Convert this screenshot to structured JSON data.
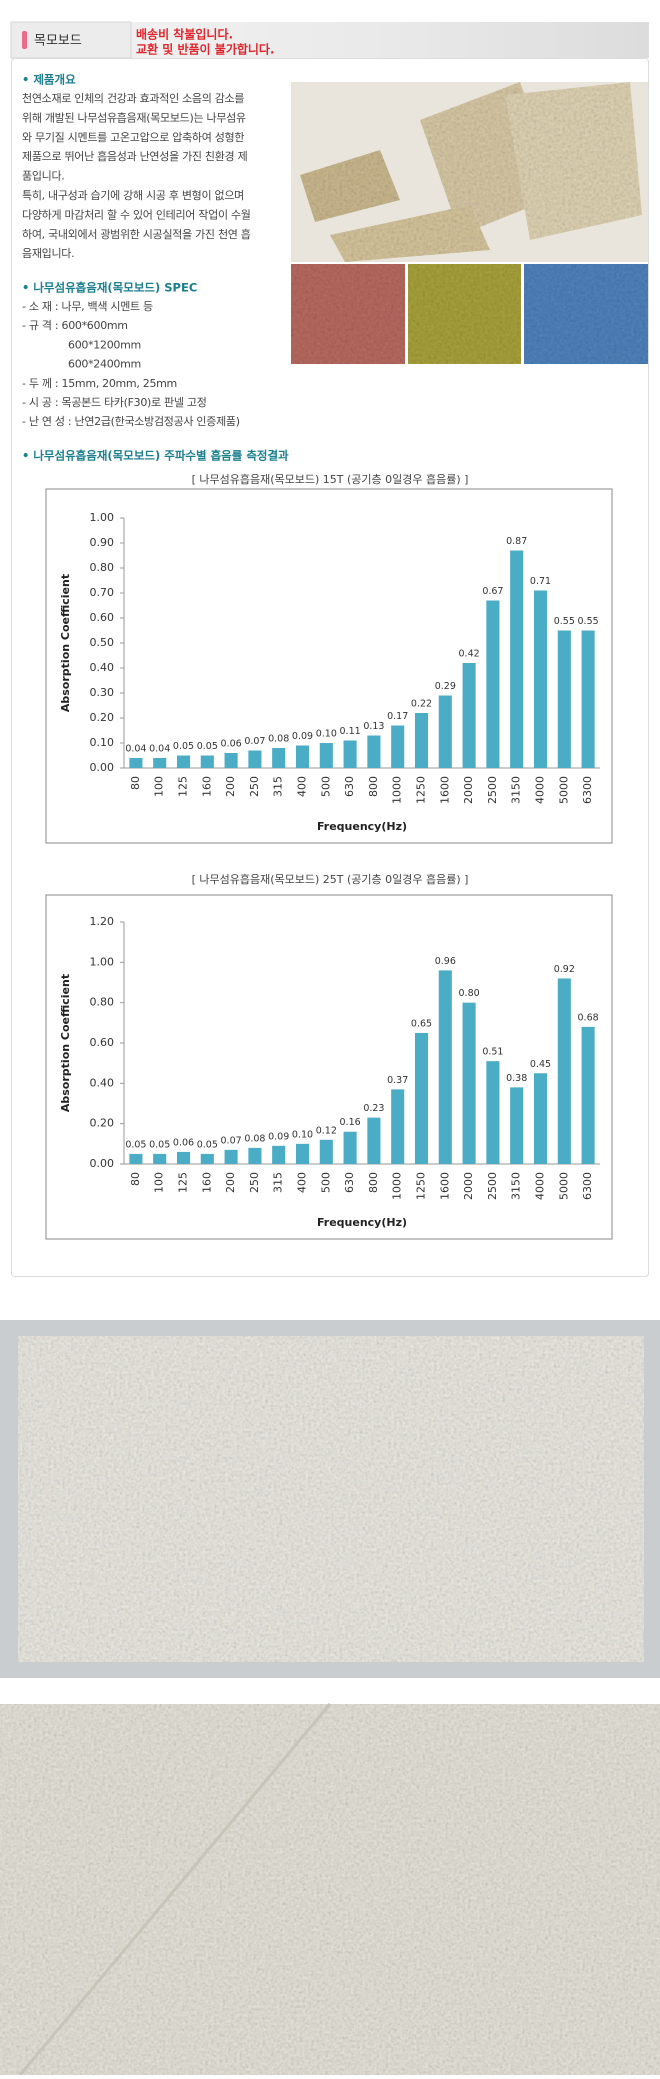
{
  "header": {
    "title": "목모보드",
    "notice": [
      "배송비 착불입니다.",
      "교환 및 반품이 불가합니다."
    ]
  },
  "overview": {
    "heading": "• 제품개요",
    "lines": [
      "천연소재로 인체의 건강과 효과적인 소음의 감소를",
      "위해 개발된 나무섬유흡음재(목모보드)는 나무섬유",
      "와 무기질 시멘트를 고온고압으로 압축하여 성형한",
      "제품으로 뛰어난 흡음성과 난연성을 가진 친환경 제",
      "품입니다.",
      "특히, 내구성과 습기에 강해 시공 후 변형이 없으며",
      "다양하게 마감처리 할 수 있어 인테리어 작업이 수월",
      "하여, 국내외에서 광범위한 시공실적을 가진 천연 흡",
      "음재입니다."
    ]
  },
  "spec": {
    "heading": "• 나무섬유흡음재(목모보드) SPEC",
    "lines": [
      "- 소 재 : 나무, 백색 시멘트 등",
      "- 규 격 : 600*600mm",
      "600*1200mm",
      "600*2400mm",
      "- 두 께 : 15mm, 20mm, 25mm",
      "- 시 공 : 목공본드 타카(F30)로 판넬 고정",
      "- 난 연 성 : 난연2급(한국소방검정공사 인증제품)"
    ]
  },
  "results": {
    "heading": "• 나무섬유흡음재(목모보드) 주파수별 흡음률 측정결과"
  },
  "chart_data": [
    {
      "type": "bar",
      "title": "[ 나무섬유흡음재(목모보드) 15T (공기층 0일경우 흡음률) ]",
      "y_label": "Absorption Coefficient",
      "x_label": "Frequency(Hz)",
      "categories": [
        "80",
        "100",
        "125",
        "160",
        "200",
        "250",
        "315",
        "400",
        "500",
        "630",
        "800",
        "1000",
        "1250",
        "1600",
        "2000",
        "2500",
        "3150",
        "4000",
        "5000",
        "6300"
      ],
      "values": [
        0.04,
        0.04,
        0.05,
        0.05,
        0.06,
        0.07,
        0.08,
        0.09,
        0.1,
        0.11,
        0.13,
        0.17,
        0.22,
        0.29,
        0.42,
        0.67,
        0.87,
        0.71,
        0.55,
        0.55
      ],
      "value_labels": [
        "0.04",
        "0.04",
        "0.05",
        "0.05",
        "0.06",
        "0.07",
        "0.08",
        "0.09",
        "0.10",
        "0.11",
        "0.13",
        "0.17",
        "0.22",
        "0.29",
        "0.42",
        "0.67",
        "0.87",
        "0.71",
        "0.55",
        "0.55"
      ],
      "color": "#4bacc6",
      "ylim": [
        0,
        1
      ],
      "yticks": [
        {
          "value": 0,
          "label": "0.00"
        },
        {
          "value": 0.1,
          "label": "0.10"
        },
        {
          "value": 0.2,
          "label": "0.20"
        },
        {
          "value": 0.3,
          "label": "0.30"
        },
        {
          "value": 0.4,
          "label": "0.40"
        },
        {
          "value": 0.5,
          "label": "0.50"
        },
        {
          "value": 0.6,
          "label": "0.60"
        },
        {
          "value": 0.7,
          "label": "0.70"
        },
        {
          "value": 0.8,
          "label": "0.80"
        },
        {
          "value": 0.9,
          "label": "0.90"
        },
        {
          "value": 1,
          "label": "1.00"
        }
      ]
    },
    {
      "type": "bar",
      "title": "[ 나무섬유흡음재(목모보드) 25T (공기층 0일경우 흡음률) ]",
      "y_label": "Absorption Coefficient",
      "x_label": "Frequency(Hz)",
      "categories": [
        "80",
        "100",
        "125",
        "160",
        "200",
        "250",
        "315",
        "400",
        "500",
        "630",
        "800",
        "1000",
        "1250",
        "1600",
        "2000",
        "2500",
        "3150",
        "4000",
        "5000",
        "6300"
      ],
      "values": [
        0.05,
        0.05,
        0.06,
        0.05,
        0.07,
        0.08,
        0.09,
        0.1,
        0.12,
        0.16,
        0.23,
        0.37,
        0.65,
        0.96,
        0.8,
        0.51,
        0.38,
        0.45,
        0.92,
        0.68
      ],
      "value_labels": [
        "0.05",
        "0.05",
        "0.06",
        "0.05",
        "0.07",
        "0.08",
        "0.09",
        "0.10",
        "0.12",
        "0.16",
        "0.23",
        "0.37",
        "0.65",
        "0.96",
        "0.80",
        "0.51",
        "0.38",
        "0.45",
        "0.92",
        "0.68"
      ],
      "color": "#4bacc6",
      "ylim": [
        0,
        1.2
      ],
      "yticks": [
        {
          "value": 0,
          "label": "0.00"
        },
        {
          "value": 0.2,
          "label": "0.20"
        },
        {
          "value": 0.4,
          "label": "0.40"
        },
        {
          "value": 0.6,
          "label": "0.60"
        },
        {
          "value": 0.8,
          "label": "0.80"
        },
        {
          "value": 1,
          "label": "1.00"
        },
        {
          "value": 1.2,
          "label": "1.20"
        }
      ]
    }
  ]
}
